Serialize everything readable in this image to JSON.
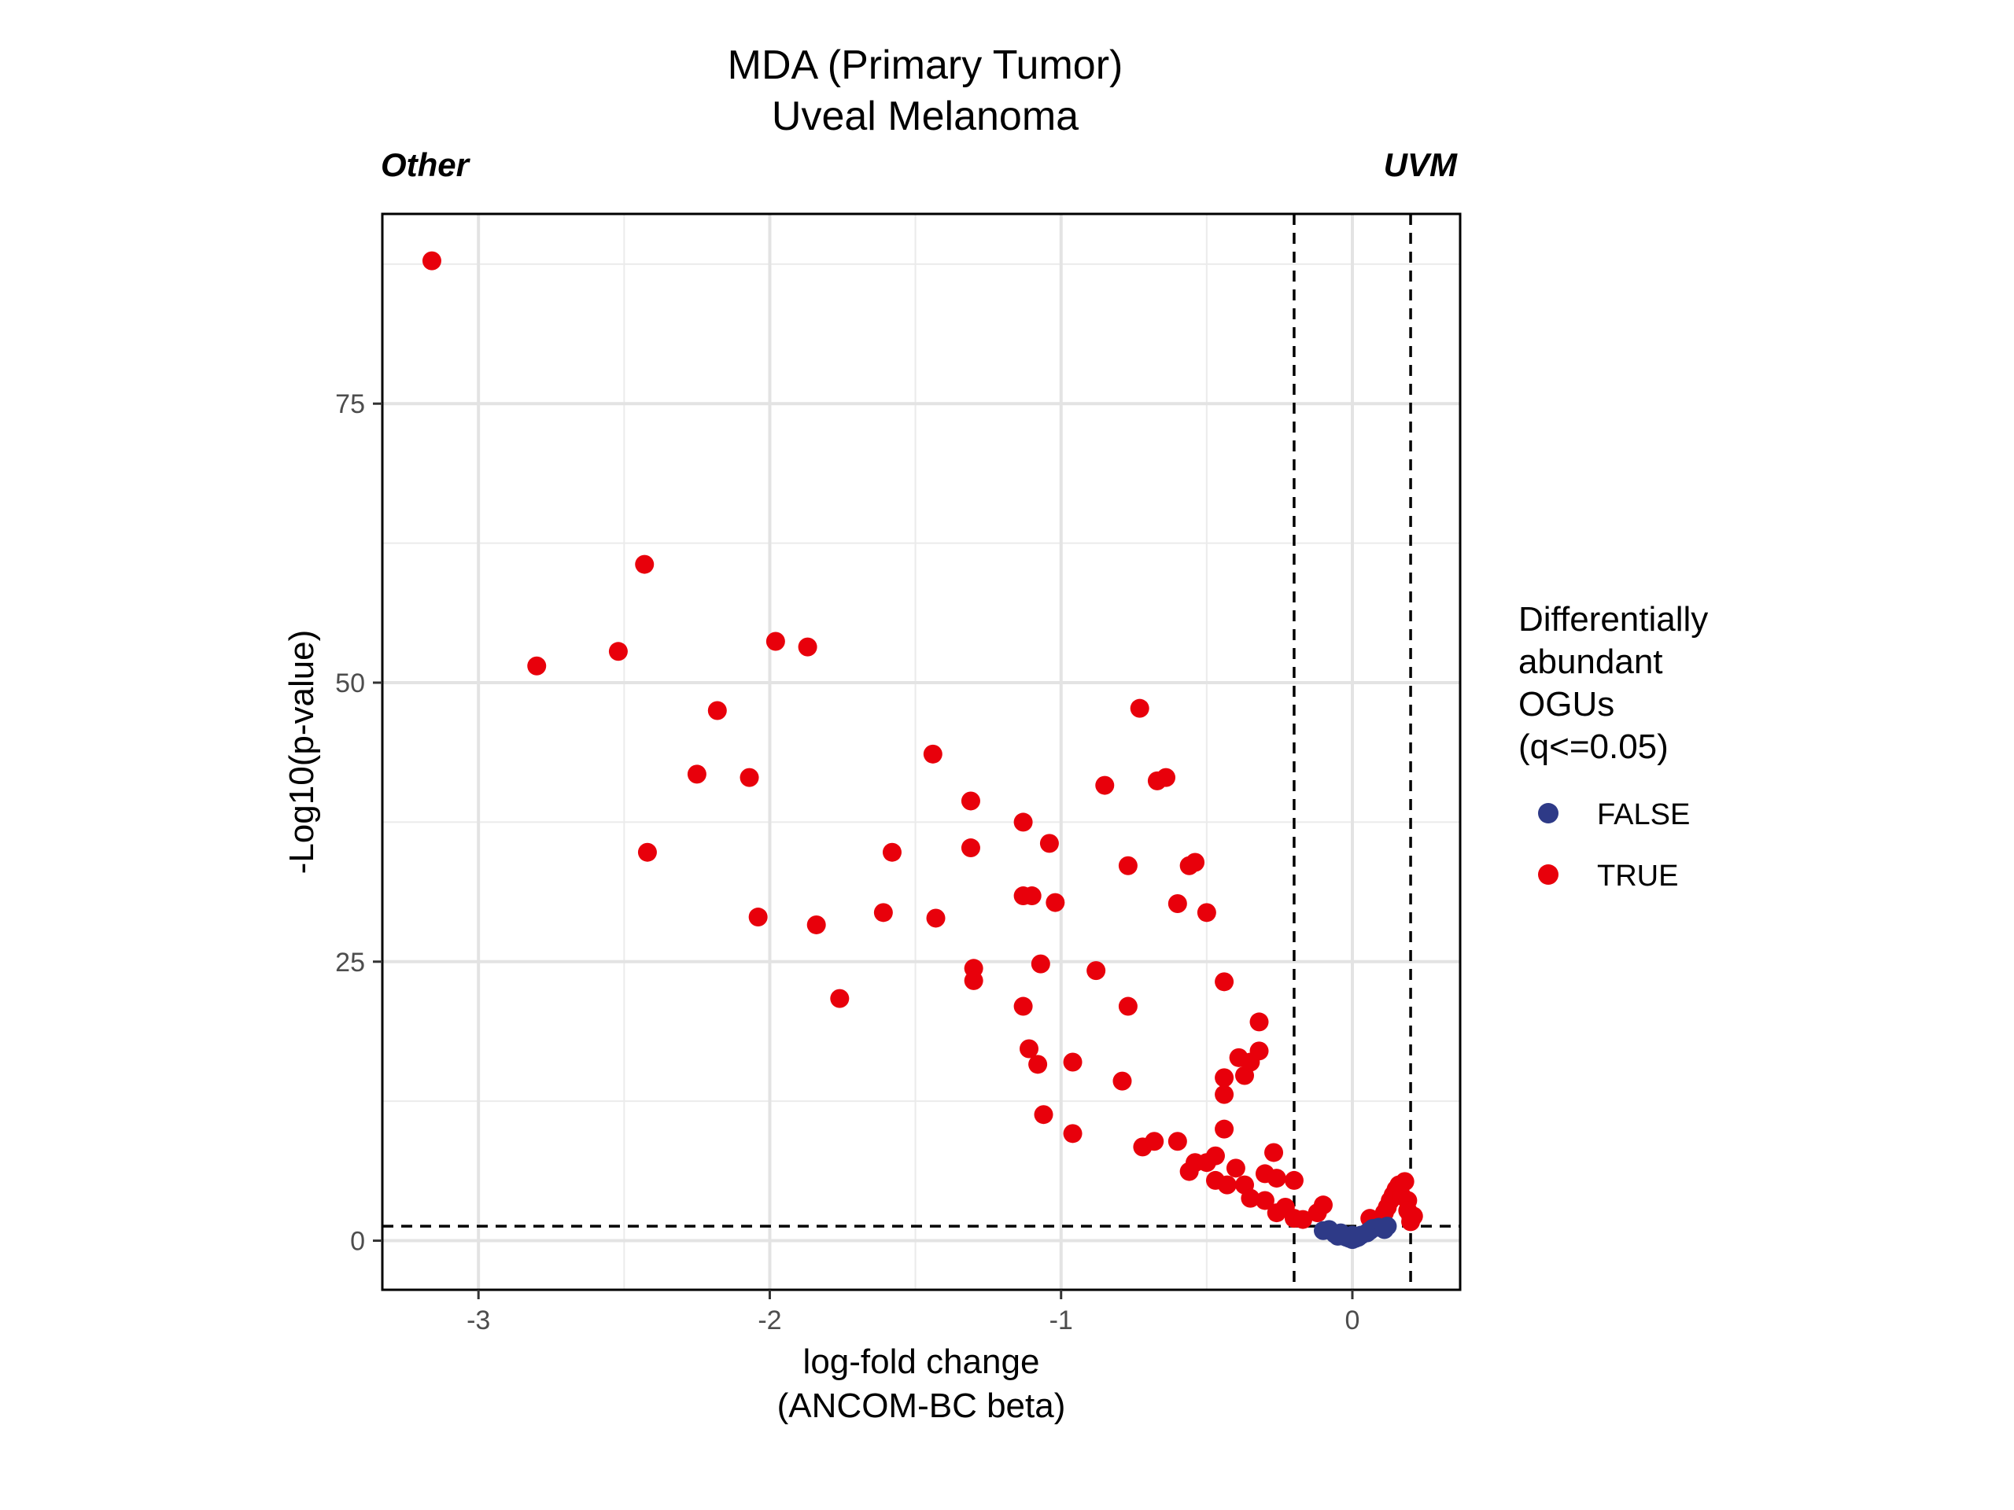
{
  "chart_data": {
    "type": "scatter",
    "title": "MDA (Primary Tumor)",
    "subtitle": "Uveal Melanoma",
    "left_annotation": "Other",
    "right_annotation": "UVM",
    "xlabel": "log-fold change",
    "xlabel2": "(ANCOM-BC beta)",
    "ylabel": "-Log10(p-value)",
    "xlim": [
      -3.33,
      0.37
    ],
    "ylim": [
      -4.4,
      92
    ],
    "xticks": [
      -3,
      -2,
      -1,
      0
    ],
    "xtick_labels": [
      "-3",
      "-2",
      "-1",
      "0"
    ],
    "yticks": [
      0,
      25,
      50,
      75
    ],
    "ytick_labels": [
      "0",
      "25",
      "50",
      "75"
    ],
    "grid": true,
    "vlines": [
      -0.2,
      0.2
    ],
    "hline": 1.3,
    "legend": {
      "title_lines": [
        "Differentially",
        "abundant",
        "OGUs",
        "(q<=0.05)"
      ],
      "placement": "right",
      "entries": [
        {
          "label": "FALSE",
          "color": "#2e3a87"
        },
        {
          "label": "TRUE",
          "color": "#e8000b"
        }
      ]
    },
    "series": [
      {
        "name": "TRUE",
        "color": "#e8000b",
        "points": [
          [
            -3.16,
            87.8
          ],
          [
            -2.8,
            51.5
          ],
          [
            -2.52,
            52.8
          ],
          [
            -2.43,
            60.6
          ],
          [
            -2.42,
            34.8
          ],
          [
            -2.25,
            41.8
          ],
          [
            -2.18,
            47.5
          ],
          [
            -2.07,
            41.5
          ],
          [
            -2.04,
            29.0
          ],
          [
            -1.98,
            53.7
          ],
          [
            -1.87,
            53.2
          ],
          [
            -1.84,
            28.3
          ],
          [
            -1.76,
            21.7
          ],
          [
            -1.61,
            29.4
          ],
          [
            -1.58,
            34.8
          ],
          [
            -1.44,
            43.6
          ],
          [
            -1.43,
            28.9
          ],
          [
            -1.31,
            39.4
          ],
          [
            -1.31,
            35.2
          ],
          [
            -1.3,
            24.4
          ],
          [
            -1.3,
            23.3
          ],
          [
            -1.13,
            37.5
          ],
          [
            -1.13,
            21.0
          ],
          [
            -1.13,
            30.9
          ],
          [
            -1.1,
            30.9
          ],
          [
            -1.11,
            17.2
          ],
          [
            -1.08,
            15.8
          ],
          [
            -1.07,
            24.8
          ],
          [
            -1.06,
            11.3
          ],
          [
            -1.04,
            35.6
          ],
          [
            -1.02,
            30.3
          ],
          [
            -0.96,
            16.0
          ],
          [
            -0.96,
            9.6
          ],
          [
            -0.88,
            24.2
          ],
          [
            -0.85,
            40.8
          ],
          [
            -0.79,
            14.3
          ],
          [
            -0.77,
            33.6
          ],
          [
            -0.77,
            21.0
          ],
          [
            -0.73,
            47.7
          ],
          [
            -0.72,
            8.4
          ],
          [
            -0.68,
            8.9
          ],
          [
            -0.67,
            41.2
          ],
          [
            -0.64,
            41.5
          ],
          [
            -0.6,
            30.2
          ],
          [
            -0.6,
            8.9
          ],
          [
            -0.56,
            33.6
          ],
          [
            -0.56,
            6.2
          ],
          [
            -0.54,
            33.9
          ],
          [
            -0.54,
            7.0
          ],
          [
            -0.5,
            29.4
          ],
          [
            -0.5,
            7.0
          ],
          [
            -0.47,
            7.6
          ],
          [
            -0.47,
            5.4
          ],
          [
            -0.44,
            23.2
          ],
          [
            -0.44,
            14.6
          ],
          [
            -0.44,
            13.1
          ],
          [
            -0.44,
            10.0
          ],
          [
            -0.43,
            5.0
          ],
          [
            -0.4,
            6.5
          ],
          [
            -0.39,
            16.4
          ],
          [
            -0.37,
            14.8
          ],
          [
            -0.37,
            5.0
          ],
          [
            -0.35,
            16.0
          ],
          [
            -0.35,
            3.8
          ],
          [
            -0.32,
            19.6
          ],
          [
            -0.32,
            17.0
          ],
          [
            -0.3,
            6.0
          ],
          [
            -0.3,
            3.6
          ],
          [
            -0.27,
            7.9
          ],
          [
            -0.26,
            5.6
          ],
          [
            -0.26,
            2.5
          ],
          [
            -0.23,
            3.0
          ],
          [
            -0.2,
            5.4
          ],
          [
            -0.2,
            2.0
          ],
          [
            -0.17,
            1.9
          ],
          [
            -0.12,
            2.5
          ],
          [
            -0.1,
            3.2
          ],
          [
            0.06,
            2.0
          ],
          [
            0.09,
            1.7
          ],
          [
            0.11,
            2.5
          ],
          [
            0.12,
            3.0
          ],
          [
            0.13,
            3.6
          ],
          [
            0.14,
            4.1
          ],
          [
            0.15,
            4.6
          ],
          [
            0.16,
            5.0
          ],
          [
            0.17,
            4.0
          ],
          [
            0.18,
            5.3
          ],
          [
            0.19,
            3.6
          ],
          [
            0.19,
            2.7
          ],
          [
            0.2,
            2.2
          ],
          [
            0.2,
            1.7
          ],
          [
            0.21,
            2.2
          ]
        ]
      },
      {
        "name": "FALSE",
        "color": "#2e3a87",
        "points": [
          [
            -0.1,
            0.9
          ],
          [
            -0.08,
            1.0
          ],
          [
            -0.06,
            0.6
          ],
          [
            -0.04,
            0.7
          ],
          [
            -0.03,
            0.4
          ],
          [
            -0.02,
            0.3
          ],
          [
            -0.01,
            0.2
          ],
          [
            0.0,
            0.1
          ],
          [
            0.01,
            0.2
          ],
          [
            0.02,
            0.3
          ],
          [
            0.03,
            0.5
          ],
          [
            0.05,
            0.7
          ],
          [
            0.06,
            0.9
          ],
          [
            0.07,
            1.1
          ],
          [
            0.09,
            1.2
          ],
          [
            0.11,
            1.0
          ],
          [
            0.12,
            1.3
          ],
          [
            0.0,
            0.5
          ],
          [
            -0.05,
            0.4
          ]
        ]
      }
    ]
  }
}
